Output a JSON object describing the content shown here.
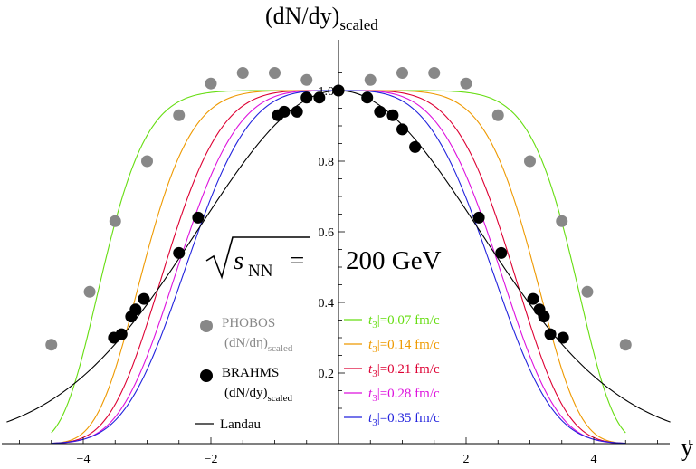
{
  "chart_data": {
    "type": "line",
    "title": "(dN/dy)",
    "title_sub": "scaled",
    "xlabel": "y",
    "xlim": [
      -5.2,
      6.0
    ],
    "ylim": [
      0.0,
      1.07
    ],
    "xticks": [
      -4,
      -2,
      2,
      4
    ],
    "yticks": [
      0.2,
      0.4,
      0.6,
      0.8,
      1.0
    ],
    "ytick_labels": [
      "0.2",
      "0.4",
      "0.6",
      "0.8",
      "1.0"
    ],
    "annotation": {
      "sqrt_label": "s",
      "sqrt_sub": "NN",
      "equals": "=",
      "energy": "200 GeV"
    },
    "curves": [
      {
        "name": "|t3|=0.07 fm/c",
        "pre": "|",
        "var": "t",
        "sub": "3",
        "post": "|=0.07 fm/c",
        "color": "#66dd11",
        "exponent": 8,
        "width": 3.85
      },
      {
        "name": "|t3|=0.14 fm/c",
        "pre": "|",
        "var": "t",
        "sub": "3",
        "post": "|=0.14 fm/c",
        "color": "#ee9900",
        "exponent": 6,
        "width": 3.25
      },
      {
        "name": "|t3|=0.21 fm/c",
        "pre": "|",
        "var": "t",
        "sub": "3",
        "post": "|=0.21 fm/c",
        "color": "#dd0033",
        "exponent": 4.6,
        "width": 2.95
      },
      {
        "name": "|t3|=0.28 fm/c",
        "pre": "|",
        "var": "t",
        "sub": "3",
        "post": "|=0.28 fm/c",
        "color": "#dd11dd",
        "exponent": 4.0,
        "width": 2.76
      },
      {
        "name": "|t3|=0.35 fm/c",
        "pre": "|",
        "var": "t",
        "sub": "3",
        "post": "|=0.35 fm/c",
        "color": "#2222dd",
        "exponent": 3.6,
        "width": 2.65
      }
    ],
    "landau": {
      "name": "Landau",
      "color": "#000000",
      "sigma": 2.2
    },
    "phobos": {
      "name": "PHOBOS",
      "sublabel": "(dN/dη)",
      "sublabel_sub": "scaled",
      "color": "#888888",
      "x": [
        -4.5,
        -3.9,
        -3.5,
        -3.0,
        -2.5,
        -2.0,
        -1.5,
        -1.0,
        -0.5,
        0.0,
        0.5,
        1.0,
        1.5,
        2.0,
        2.5,
        3.0,
        3.5,
        3.9,
        4.5
      ],
      "y": [
        0.28,
        0.43,
        0.63,
        0.8,
        0.93,
        1.02,
        1.05,
        1.05,
        1.03,
        1.0,
        1.03,
        1.05,
        1.05,
        1.02,
        0.93,
        0.8,
        0.63,
        0.43,
        0.28
      ]
    },
    "brahms": {
      "name": "BRAHMS",
      "sublabel": "(dN/dy)",
      "sublabel_sub": "scaled",
      "color": "#000000",
      "x": [
        -3.52,
        -3.4,
        -3.25,
        -3.18,
        -3.05,
        -2.5,
        -2.2,
        -0.95,
        -0.85,
        -0.65,
        -0.5,
        -0.3,
        0.0,
        0.45,
        0.65,
        0.85,
        1.0,
        1.2,
        2.2,
        2.55,
        3.05,
        3.15,
        3.22,
        3.32,
        3.52
      ],
      "y": [
        0.3,
        0.31,
        0.36,
        0.38,
        0.41,
        0.54,
        0.64,
        0.93,
        0.94,
        0.94,
        0.98,
        0.98,
        1.0,
        0.98,
        0.94,
        0.93,
        0.89,
        0.84,
        0.64,
        0.54,
        0.41,
        0.38,
        0.36,
        0.31,
        0.3
      ]
    }
  }
}
